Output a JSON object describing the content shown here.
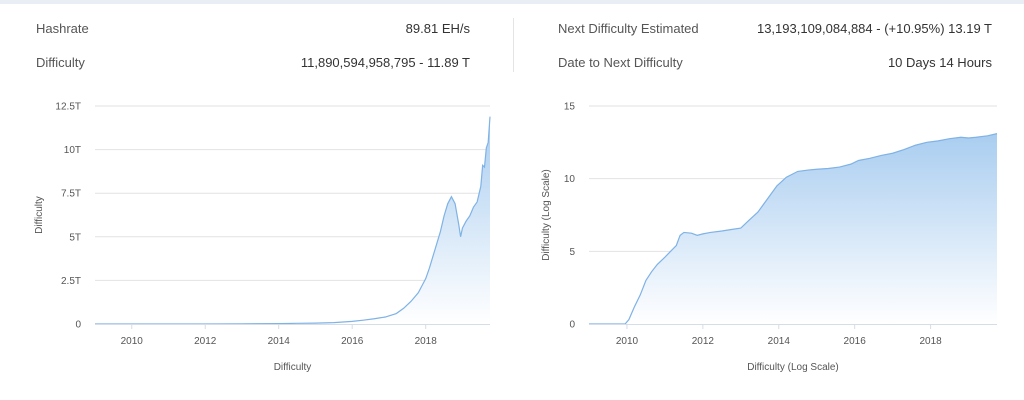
{
  "stats": {
    "hashrate_label": "Hashrate",
    "hashrate_value": "89.81 EH/s",
    "difficulty_label": "Difficulty",
    "difficulty_value": "11,890,594,958,795 - 11.89 T",
    "next_difficulty_label": "Next Difficulty Estimated",
    "next_difficulty_value": "13,193,109,084,884 - (+10.95%) 13.19 T",
    "date_next_label": "Date to Next Difficulty",
    "date_next_value": "10 Days 14 Hours"
  },
  "colors": {
    "line": "#7fb2e5",
    "fill_top": "#a9cdf0",
    "fill_bottom": "#ffffff",
    "grid": "#e2e2e2",
    "axis": "#d5dde6"
  },
  "chart_data": [
    {
      "type": "area",
      "title": "",
      "ylabel": "Difficulty",
      "xlabel": "Difficulty",
      "xlim": [
        2009.0,
        2019.75
      ],
      "ylim": [
        0,
        12.5
      ],
      "x_ticks": [
        2010,
        2012,
        2014,
        2016,
        2018
      ],
      "x_tick_labels": [
        "2010",
        "2012",
        "2014",
        "2016",
        "2018"
      ],
      "y_ticks": [
        0,
        2.5,
        5,
        7.5,
        10,
        12.5
      ],
      "y_tick_labels": [
        "0",
        "2.5T",
        "5T",
        "7.5T",
        "10T",
        "12.5T"
      ],
      "grid": true,
      "series": [
        {
          "x": [
            2009.0,
            2010.0,
            2011.0,
            2012.0,
            2013.0,
            2014.0,
            2014.5,
            2015.0,
            2015.5,
            2016.0,
            2016.3,
            2016.6,
            2016.9,
            2017.2,
            2017.4,
            2017.6,
            2017.8,
            2017.9,
            2018.0,
            2018.1,
            2018.2,
            2018.3,
            2018.4,
            2018.5,
            2018.6,
            2018.7,
            2018.75,
            2018.8,
            2018.9,
            2018.95,
            2019.0,
            2019.1,
            2019.2,
            2019.3,
            2019.4,
            2019.5,
            2019.55,
            2019.6,
            2019.65,
            2019.7,
            2019.75
          ],
          "y": [
            0,
            0.0,
            0.001,
            0.003,
            0.01,
            0.02,
            0.04,
            0.05,
            0.08,
            0.15,
            0.22,
            0.3,
            0.4,
            0.6,
            0.9,
            1.3,
            1.8,
            2.2,
            2.6,
            3.2,
            3.9,
            4.6,
            5.3,
            6.2,
            6.9,
            7.3,
            7.1,
            6.9,
            5.7,
            5.0,
            5.5,
            5.9,
            6.2,
            6.7,
            7.0,
            7.9,
            9.1,
            9.0,
            10.1,
            10.4,
            11.89
          ]
        }
      ]
    },
    {
      "type": "area",
      "title": "",
      "ylabel": "Difficulty (Log Scale)",
      "xlabel": "Difficulty (Log Scale)",
      "xlim": [
        2009.0,
        2019.75
      ],
      "ylim": [
        0,
        15
      ],
      "x_ticks": [
        2010,
        2012,
        2014,
        2016,
        2018
      ],
      "x_tick_labels": [
        "2010",
        "2012",
        "2014",
        "2016",
        "2018"
      ],
      "y_ticks": [
        0,
        5,
        10,
        15
      ],
      "y_tick_labels": [
        "0",
        "5",
        "10",
        "15"
      ],
      "grid": true,
      "series": [
        {
          "x": [
            2009.0,
            2009.95,
            2010.05,
            2010.2,
            2010.35,
            2010.5,
            2010.65,
            2010.8,
            2011.0,
            2011.15,
            2011.3,
            2011.4,
            2011.5,
            2011.7,
            2011.85,
            2012.0,
            2012.2,
            2012.5,
            2012.75,
            2013.0,
            2013.2,
            2013.45,
            2013.7,
            2013.95,
            2014.2,
            2014.5,
            2014.8,
            2015.0,
            2015.3,
            2015.6,
            2015.9,
            2016.1,
            2016.4,
            2016.7,
            2017.0,
            2017.3,
            2017.6,
            2017.9,
            2018.2,
            2018.5,
            2018.8,
            2019.0,
            2019.2,
            2019.5,
            2019.75
          ],
          "y": [
            0,
            0,
            0.3,
            1.2,
            2.0,
            3.0,
            3.6,
            4.1,
            4.6,
            5.0,
            5.4,
            6.1,
            6.3,
            6.25,
            6.1,
            6.2,
            6.3,
            6.4,
            6.5,
            6.6,
            7.1,
            7.7,
            8.6,
            9.5,
            10.1,
            10.5,
            10.6,
            10.65,
            10.7,
            10.8,
            11.0,
            11.25,
            11.4,
            11.6,
            11.75,
            12.0,
            12.3,
            12.5,
            12.6,
            12.75,
            12.85,
            12.8,
            12.85,
            12.95,
            13.1
          ]
        }
      ]
    }
  ]
}
